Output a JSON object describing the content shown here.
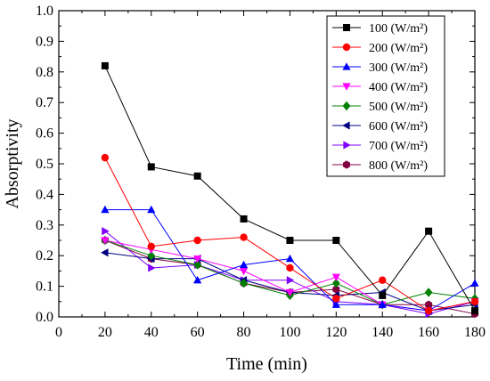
{
  "chart_data": {
    "type": "line",
    "xlabel": "Time (min)",
    "ylabel": "Absorptivity",
    "xlim": [
      0,
      180
    ],
    "ylim": [
      0.0,
      1.0
    ],
    "xticks": [
      0,
      20,
      40,
      60,
      80,
      100,
      120,
      140,
      160,
      180
    ],
    "yticks": [
      0.0,
      0.1,
      0.2,
      0.3,
      0.4,
      0.5,
      0.6,
      0.7,
      0.8,
      0.9,
      1.0
    ],
    "ytick_labels": [
      "0.0",
      "0.1",
      "0.2",
      "0.3",
      "0.4",
      "0.5",
      "0.6",
      "0.7",
      "0.8",
      "0.9",
      "1.0"
    ],
    "grid": false,
    "legend_position": "top-right",
    "x": [
      20,
      40,
      60,
      80,
      100,
      120,
      140,
      160,
      180
    ],
    "series": [
      {
        "name": "100 (W/m²)",
        "color": "#000000",
        "marker": "square",
        "values": [
          0.82,
          0.49,
          0.46,
          0.32,
          0.25,
          0.25,
          0.07,
          0.28,
          0.02
        ]
      },
      {
        "name": "200 (W/m²)",
        "color": "#ff0000",
        "marker": "circle",
        "values": [
          0.52,
          0.23,
          0.25,
          0.26,
          0.16,
          0.06,
          0.12,
          0.02,
          0.05
        ]
      },
      {
        "name": "300 (W/m²)",
        "color": "#0000ff",
        "marker": "triangle-up",
        "values": [
          0.35,
          0.35,
          0.12,
          0.17,
          0.19,
          0.04,
          0.04,
          0.02,
          0.11
        ]
      },
      {
        "name": "400 (W/m²)",
        "color": "#ff00ff",
        "marker": "triangle-down",
        "values": [
          0.25,
          0.22,
          0.19,
          0.15,
          0.08,
          0.13,
          0.04,
          0.02,
          0.05
        ]
      },
      {
        "name": "500 (W/m²)",
        "color": "#008000",
        "marker": "diamond",
        "values": [
          0.25,
          0.2,
          0.17,
          0.11,
          0.07,
          0.11,
          0.04,
          0.08,
          0.06
        ]
      },
      {
        "name": "600 (W/m²)",
        "color": "#000080",
        "marker": "triangle-left",
        "values": [
          0.21,
          0.19,
          0.19,
          0.12,
          0.08,
          0.07,
          0.08,
          0.02,
          0.04
        ]
      },
      {
        "name": "700 (W/m²)",
        "color": "#8000ff",
        "marker": "triangle-right",
        "values": [
          0.28,
          0.16,
          0.17,
          0.12,
          0.12,
          0.05,
          0.04,
          0.01,
          0.05
        ]
      },
      {
        "name": "800 (W/m²)",
        "color": "#800040",
        "marker": "hexagon",
        "values": [
          0.25,
          0.19,
          0.17,
          0.11,
          0.08,
          0.09,
          0.04,
          0.04,
          0.01
        ]
      }
    ]
  }
}
